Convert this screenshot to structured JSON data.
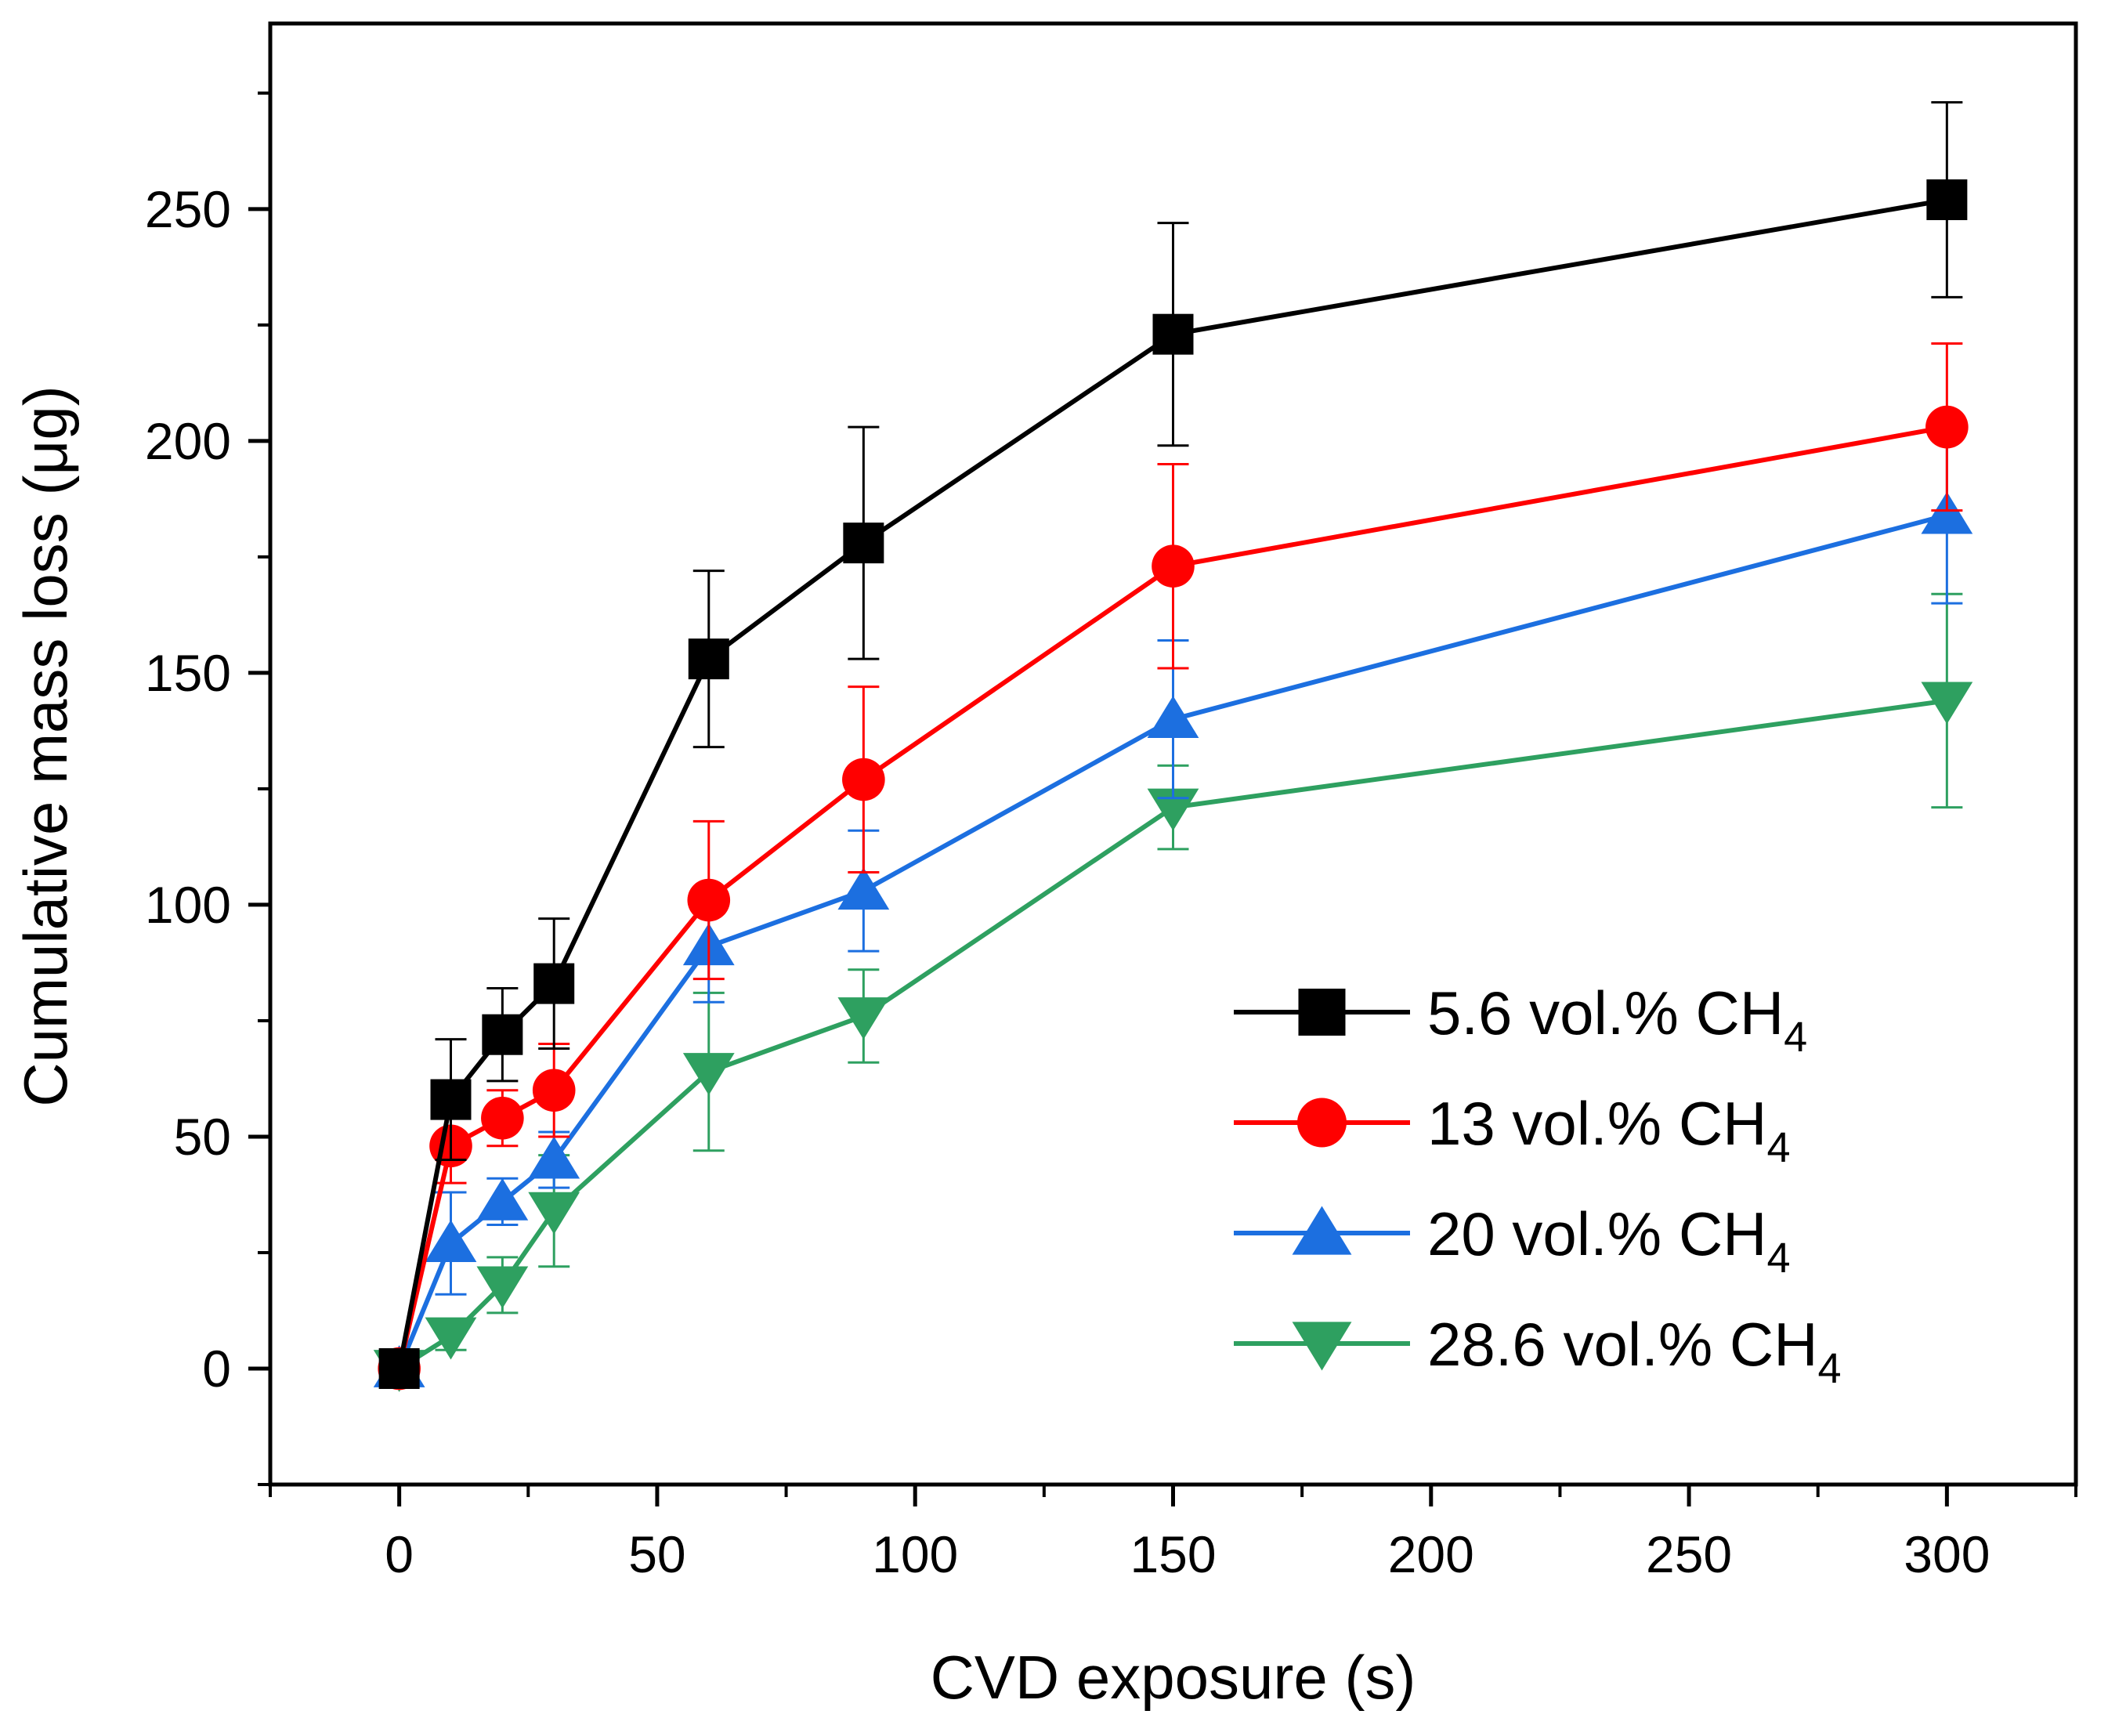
{
  "chart_data": {
    "type": "line",
    "title": "",
    "xlabel": "CVD exposure (s)",
    "ylabel": "Cumulative mass loss (μg)",
    "xlim": [
      -25,
      325
    ],
    "ylim": [
      -25,
      290
    ],
    "x_ticks": [
      0,
      50,
      100,
      150,
      200,
      250,
      300
    ],
    "y_ticks": [
      0,
      50,
      100,
      150,
      200,
      250
    ],
    "x_tick_labels": [
      "0",
      "50",
      "100",
      "150",
      "200",
      "250",
      "300"
    ],
    "y_tick_labels": [
      "0",
      "50",
      "100",
      "150",
      "200",
      "250"
    ],
    "grid": false,
    "legend_position": "bottom-right",
    "x": [
      0,
      10,
      20,
      30,
      60,
      90,
      150,
      300
    ],
    "series": [
      {
        "name": "5.6 vol.% CH4",
        "legend_main": "5.6 vol.% CH",
        "legend_sub": "4",
        "color": "#000000",
        "marker": "square",
        "values": [
          0,
          58,
          72,
          83,
          153,
          178,
          223,
          252
        ],
        "errors": [
          2,
          13,
          10,
          14,
          19,
          25,
          24,
          21
        ]
      },
      {
        "name": "13 vol.% CH4",
        "legend_main": "13 vol.% CH",
        "legend_sub": "4",
        "color": "#ff0000",
        "marker": "circle",
        "values": [
          0,
          48,
          54,
          60,
          101,
          127,
          173,
          203
        ],
        "errors": [
          2,
          8,
          6,
          10,
          17,
          20,
          22,
          18
        ]
      },
      {
        "name": "20 vol.% CH4",
        "legend_main": "20 vol.% CH",
        "legend_sub": "4",
        "color": "#1c6fe0",
        "marker": "triangle-up",
        "values": [
          0,
          27,
          36,
          45,
          91,
          103,
          140,
          184
        ],
        "errors": [
          2,
          11,
          5,
          6,
          12,
          13,
          17,
          19
        ]
      },
      {
        "name": "28.6 vol.% CH4",
        "legend_main": "28.6 vol.% CH",
        "legend_sub": "4",
        "color": "#2ea060",
        "marker": "triangle-down",
        "values": [
          0,
          7,
          18,
          34,
          64,
          76,
          121,
          144
        ],
        "errors": [
          2,
          3,
          6,
          12,
          17,
          10,
          9,
          23
        ]
      }
    ]
  }
}
